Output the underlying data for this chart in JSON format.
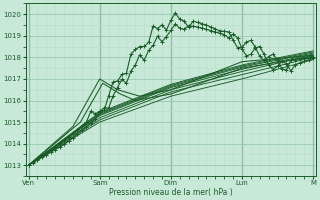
{
  "background_color": "#c8e8d8",
  "plot_bg_color": "#c8e8d8",
  "grid_major_color": "#98c8b0",
  "grid_minor_color": "#b8dcc8",
  "line_color": "#1a5c28",
  "xlabel": "Pression niveau de la mer( hPa )",
  "ylim": [
    1012.5,
    1020.5
  ],
  "yticks": [
    1013,
    1014,
    1015,
    1016,
    1017,
    1018,
    1019,
    1020
  ],
  "xtick_labels": [
    "Ven",
    "Sam",
    "Dim",
    "Lun",
    "M"
  ],
  "xtick_positions": [
    0,
    48,
    96,
    144,
    192
  ]
}
